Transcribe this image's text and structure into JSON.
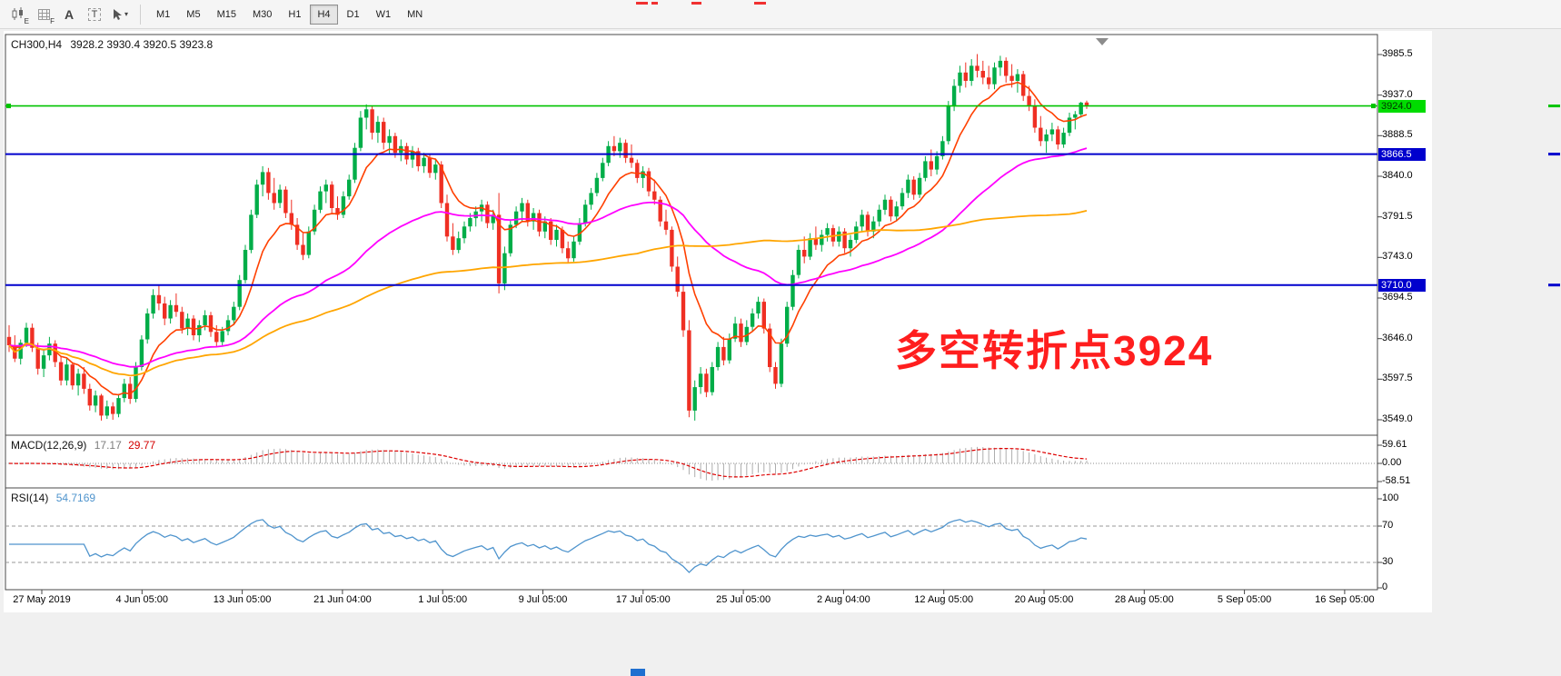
{
  "toolbar": {
    "tools": [
      {
        "name": "chart-candlestick",
        "badge": "E"
      },
      {
        "name": "grid",
        "badge": "F"
      },
      {
        "name": "text",
        "glyph": "A"
      },
      {
        "name": "text-label",
        "glyph": "T"
      },
      {
        "name": "crosshair",
        "caret": "▾"
      }
    ],
    "timeframes": [
      "M1",
      "M5",
      "M15",
      "M30",
      "H1",
      "H4",
      "D1",
      "W1",
      "MN"
    ],
    "active_timeframe": "H4"
  },
  "chart": {
    "title_symbol": "CH300,H4",
    "title_ohlc": "3928.2 3930.4 3920.5 3923.8",
    "annotation": {
      "text": "多空转折点3924",
      "color": "#FF1E1E"
    }
  },
  "macd_panel": {
    "label": "MACD(12,26,9)",
    "main_value": "17.17",
    "signal_value": "29.77"
  },
  "rsi_panel": {
    "label": "RSI(14)",
    "value": "54.7169"
  },
  "chart_data": {
    "type": "candlestick",
    "symbol": "CH300",
    "timeframe": "H4",
    "ohlc_display": {
      "open": "3928.2",
      "high": "3930.4",
      "low": "3920.5",
      "close": "3923.8"
    },
    "price_axis_ticks": [
      "3985.5",
      "3937.0",
      "3888.5",
      "3840.0",
      "3791.5",
      "3743.0",
      "3694.5",
      "3646.0",
      "3597.5",
      "3549.0"
    ],
    "levels": [
      {
        "value": 3924.0,
        "label": "3924.0",
        "line_color": "#00C300",
        "badge_bg": "#00DC00",
        "text_color": "#003300"
      },
      {
        "value": 3866.5,
        "label": "3866.5",
        "line_color": "#0000CD",
        "badge_bg": "#0000CD",
        "text_color": "#FFFFFF"
      },
      {
        "value": 3710.0,
        "label": "3710.0",
        "line_color": "#0000CD",
        "badge_bg": "#0000CD",
        "text_color": "#FFFFFF"
      }
    ],
    "moving_averages": [
      {
        "type": "ema",
        "period": 10,
        "color": "#FF4000"
      },
      {
        "type": "ema",
        "period": 48,
        "color": "#FF00FF"
      },
      {
        "type": "sma",
        "period": 110,
        "color": "#FFA500"
      }
    ],
    "macd": {
      "fast": 12,
      "slow": 26,
      "signal": 9,
      "axis": [
        "59.61",
        "0.00",
        "-58.51"
      ],
      "histogram_color": "#ADADAD",
      "signal_color": "#DE0000"
    },
    "rsi": {
      "period": 14,
      "axis": [
        "100",
        "70",
        "30",
        "0"
      ],
      "color": "#4F94CD",
      "levels": [
        70,
        30
      ]
    },
    "time_axis_labels": [
      "27 May 2019",
      "4 Jun 05:00",
      "13 Jun 05:00",
      "21 Jun 04:00",
      "1 Jul 05:00",
      "9 Jul 05:00",
      "17 Jul 05:00",
      "25 Jul 05:00",
      "2 Aug 04:00",
      "12 Aug 05:00",
      "20 Aug 05:00",
      "28 Aug 05:00",
      "5 Sep 05:00",
      "16 Sep 05:00"
    ],
    "colors": {
      "up": "#00AD48",
      "down": "#EF2F23",
      "background": "#FFFFFF",
      "border": "#4A4A4A"
    },
    "candles": [
      [
        3648,
        3662,
        3630,
        3638
      ],
      [
        3638,
        3650,
        3618,
        3622
      ],
      [
        3622,
        3645,
        3615,
        3641
      ],
      [
        3641,
        3665,
        3636,
        3659
      ],
      [
        3659,
        3664,
        3630,
        3635
      ],
      [
        3635,
        3641,
        3603,
        3610
      ],
      [
        3610,
        3632,
        3600,
        3626
      ],
      [
        3626,
        3648,
        3620,
        3640
      ],
      [
        3640,
        3644,
        3612,
        3618
      ],
      [
        3618,
        3625,
        3590,
        3596
      ],
      [
        3596,
        3622,
        3590,
        3615
      ],
      [
        3615,
        3618,
        3585,
        3590
      ],
      [
        3590,
        3610,
        3578,
        3604
      ],
      [
        3604,
        3612,
        3580,
        3586
      ],
      [
        3586,
        3592,
        3560,
        3566
      ],
      [
        3566,
        3584,
        3558,
        3578
      ],
      [
        3578,
        3580,
        3548,
        3554
      ],
      [
        3554,
        3572,
        3550,
        3565
      ],
      [
        3565,
        3570,
        3549,
        3556
      ],
      [
        3556,
        3580,
        3552,
        3575
      ],
      [
        3575,
        3598,
        3570,
        3592
      ],
      [
        3592,
        3600,
        3568,
        3574
      ],
      [
        3574,
        3618,
        3570,
        3612
      ],
      [
        3612,
        3650,
        3608,
        3645
      ],
      [
        3645,
        3682,
        3640,
        3676
      ],
      [
        3676,
        3705,
        3670,
        3698
      ],
      [
        3698,
        3710,
        3680,
        3688
      ],
      [
        3688,
        3696,
        3662,
        3670
      ],
      [
        3670,
        3692,
        3664,
        3686
      ],
      [
        3686,
        3700,
        3672,
        3678
      ],
      [
        3678,
        3684,
        3652,
        3658
      ],
      [
        3658,
        3676,
        3650,
        3670
      ],
      [
        3670,
        3674,
        3644,
        3650
      ],
      [
        3650,
        3668,
        3642,
        3662
      ],
      [
        3662,
        3680,
        3656,
        3674
      ],
      [
        3674,
        3678,
        3648,
        3654
      ],
      [
        3654,
        3662,
        3636,
        3642
      ],
      [
        3642,
        3660,
        3638,
        3655
      ],
      [
        3655,
        3674,
        3650,
        3668
      ],
      [
        3668,
        3690,
        3662,
        3684
      ],
      [
        3684,
        3722,
        3680,
        3716
      ],
      [
        3716,
        3758,
        3712,
        3752
      ],
      [
        3752,
        3800,
        3748,
        3794
      ],
      [
        3794,
        3836,
        3790,
        3830
      ],
      [
        3830,
        3852,
        3816,
        3845
      ],
      [
        3845,
        3850,
        3812,
        3820
      ],
      [
        3820,
        3838,
        3800,
        3808
      ],
      [
        3808,
        3830,
        3802,
        3824
      ],
      [
        3824,
        3828,
        3790,
        3796
      ],
      [
        3796,
        3812,
        3776,
        3782
      ],
      [
        3782,
        3790,
        3752,
        3758
      ],
      [
        3758,
        3772,
        3740,
        3746
      ],
      [
        3746,
        3780,
        3742,
        3774
      ],
      [
        3774,
        3806,
        3770,
        3800
      ],
      [
        3800,
        3828,
        3796,
        3822
      ],
      [
        3822,
        3836,
        3808,
        3830
      ],
      [
        3830,
        3834,
        3796,
        3802
      ],
      [
        3802,
        3816,
        3788,
        3794
      ],
      [
        3794,
        3822,
        3790,
        3816
      ],
      [
        3816,
        3842,
        3812,
        3836
      ],
      [
        3836,
        3880,
        3832,
        3874
      ],
      [
        3874,
        3918,
        3870,
        3910
      ],
      [
        3910,
        3926,
        3896,
        3920
      ],
      [
        3920,
        3924,
        3884,
        3892
      ],
      [
        3892,
        3912,
        3880,
        3905
      ],
      [
        3905,
        3910,
        3872,
        3880
      ],
      [
        3880,
        3896,
        3866,
        3888
      ],
      [
        3888,
        3892,
        3862,
        3868
      ],
      [
        3868,
        3884,
        3858,
        3876
      ],
      [
        3876,
        3880,
        3854,
        3860
      ],
      [
        3860,
        3876,
        3850,
        3870
      ],
      [
        3870,
        3874,
        3846,
        3852
      ],
      [
        3852,
        3868,
        3844,
        3862
      ],
      [
        3862,
        3866,
        3838,
        3844
      ],
      [
        3844,
        3860,
        3836,
        3854
      ],
      [
        3854,
        3858,
        3802,
        3808
      ],
      [
        3808,
        3818,
        3762,
        3768
      ],
      [
        3768,
        3784,
        3746,
        3752
      ],
      [
        3752,
        3774,
        3748,
        3766
      ],
      [
        3766,
        3786,
        3760,
        3780
      ],
      [
        3780,
        3796,
        3774,
        3790
      ],
      [
        3790,
        3804,
        3780,
        3798
      ],
      [
        3798,
        3812,
        3786,
        3806
      ],
      [
        3806,
        3810,
        3778,
        3784
      ],
      [
        3784,
        3800,
        3776,
        3794
      ],
      [
        3794,
        3820,
        3700,
        3712
      ],
      [
        3712,
        3756,
        3704,
        3748
      ],
      [
        3748,
        3788,
        3744,
        3782
      ],
      [
        3782,
        3804,
        3778,
        3798
      ],
      [
        3798,
        3814,
        3786,
        3808
      ],
      [
        3808,
        3812,
        3780,
        3786
      ],
      [
        3786,
        3802,
        3776,
        3796
      ],
      [
        3796,
        3800,
        3768,
        3774
      ],
      [
        3774,
        3792,
        3766,
        3786
      ],
      [
        3786,
        3790,
        3758,
        3764
      ],
      [
        3764,
        3782,
        3756,
        3776
      ],
      [
        3776,
        3780,
        3748,
        3754
      ],
      [
        3754,
        3762,
        3736,
        3742
      ],
      [
        3742,
        3768,
        3738,
        3762
      ],
      [
        3762,
        3790,
        3758,
        3784
      ],
      [
        3784,
        3812,
        3780,
        3806
      ],
      [
        3806,
        3826,
        3800,
        3820
      ],
      [
        3820,
        3844,
        3816,
        3838
      ],
      [
        3838,
        3862,
        3834,
        3856
      ],
      [
        3856,
        3882,
        3852,
        3876
      ],
      [
        3876,
        3888,
        3864,
        3870
      ],
      [
        3870,
        3886,
        3862,
        3880
      ],
      [
        3880,
        3884,
        3856,
        3862
      ],
      [
        3862,
        3878,
        3850,
        3856
      ],
      [
        3856,
        3860,
        3832,
        3838
      ],
      [
        3838,
        3852,
        3826,
        3846
      ],
      [
        3846,
        3850,
        3816,
        3822
      ],
      [
        3822,
        3836,
        3806,
        3812
      ],
      [
        3812,
        3816,
        3780,
        3786
      ],
      [
        3786,
        3800,
        3770,
        3776
      ],
      [
        3776,
        3780,
        3726,
        3732
      ],
      [
        3732,
        3744,
        3696,
        3702
      ],
      [
        3702,
        3710,
        3648,
        3656
      ],
      [
        3656,
        3668,
        3552,
        3560
      ],
      [
        3560,
        3596,
        3548,
        3588
      ],
      [
        3588,
        3612,
        3580,
        3604
      ],
      [
        3604,
        3610,
        3576,
        3582
      ],
      [
        3582,
        3618,
        3578,
        3612
      ],
      [
        3612,
        3642,
        3608,
        3636
      ],
      [
        3636,
        3648,
        3614,
        3620
      ],
      [
        3620,
        3652,
        3616,
        3646
      ],
      [
        3646,
        3672,
        3642,
        3664
      ],
      [
        3664,
        3670,
        3636,
        3642
      ],
      [
        3642,
        3668,
        3638,
        3660
      ],
      [
        3660,
        3682,
        3654,
        3676
      ],
      [
        3676,
        3696,
        3670,
        3690
      ],
      [
        3690,
        3694,
        3652,
        3658
      ],
      [
        3658,
        3664,
        3606,
        3612
      ],
      [
        3612,
        3618,
        3586,
        3592
      ],
      [
        3592,
        3646,
        3588,
        3640
      ],
      [
        3640,
        3690,
        3636,
        3684
      ],
      [
        3684,
        3728,
        3680,
        3722
      ],
      [
        3722,
        3758,
        3718,
        3752
      ],
      [
        3752,
        3768,
        3736,
        3744
      ],
      [
        3744,
        3772,
        3740,
        3766
      ],
      [
        3766,
        3780,
        3752,
        3758
      ],
      [
        3758,
        3776,
        3750,
        3770
      ],
      [
        3770,
        3784,
        3762,
        3778
      ],
      [
        3778,
        3782,
        3756,
        3762
      ],
      [
        3762,
        3780,
        3756,
        3774
      ],
      [
        3774,
        3778,
        3748,
        3754
      ],
      [
        3754,
        3770,
        3744,
        3764
      ],
      [
        3764,
        3786,
        3760,
        3780
      ],
      [
        3780,
        3800,
        3774,
        3794
      ],
      [
        3794,
        3798,
        3768,
        3774
      ],
      [
        3774,
        3792,
        3766,
        3786
      ],
      [
        3786,
        3806,
        3780,
        3800
      ],
      [
        3800,
        3818,
        3794,
        3812
      ],
      [
        3812,
        3816,
        3786,
        3792
      ],
      [
        3792,
        3810,
        3786,
        3804
      ],
      [
        3804,
        3826,
        3800,
        3820
      ],
      [
        3820,
        3842,
        3814,
        3836
      ],
      [
        3836,
        3840,
        3812,
        3818
      ],
      [
        3818,
        3844,
        3814,
        3838
      ],
      [
        3838,
        3864,
        3834,
        3858
      ],
      [
        3858,
        3872,
        3840,
        3848
      ],
      [
        3848,
        3870,
        3842,
        3864
      ],
      [
        3864,
        3888,
        3860,
        3882
      ],
      [
        3882,
        3930,
        3878,
        3924
      ],
      [
        3924,
        3956,
        3918,
        3948
      ],
      [
        3948,
        3972,
        3940,
        3964
      ],
      [
        3964,
        3976,
        3946,
        3954
      ],
      [
        3954,
        3980,
        3948,
        3972
      ],
      [
        3972,
        3986,
        3958,
        3966
      ],
      [
        3966,
        3978,
        3950,
        3958
      ],
      [
        3958,
        3972,
        3944,
        3950
      ],
      [
        3950,
        3976,
        3944,
        3970
      ],
      [
        3970,
        3984,
        3960,
        3978
      ],
      [
        3978,
        3982,
        3952,
        3960
      ],
      [
        3960,
        3974,
        3946,
        3954
      ],
      [
        3954,
        3968,
        3940,
        3962
      ],
      [
        3962,
        3966,
        3930,
        3936
      ],
      [
        3936,
        3948,
        3918,
        3924
      ],
      [
        3924,
        3932,
        3892,
        3898
      ],
      [
        3898,
        3912,
        3876,
        3882
      ],
      [
        3882,
        3896,
        3868,
        3890
      ],
      [
        3890,
        3904,
        3882,
        3896
      ],
      [
        3896,
        3900,
        3872,
        3878
      ],
      [
        3878,
        3898,
        3874,
        3892
      ],
      [
        3892,
        3916,
        3888,
        3910
      ],
      [
        3910,
        3918,
        3896,
        3914
      ],
      [
        3914,
        3929,
        3910,
        3928
      ],
      [
        3928.2,
        3930.4,
        3920.5,
        3923.8
      ]
    ]
  }
}
